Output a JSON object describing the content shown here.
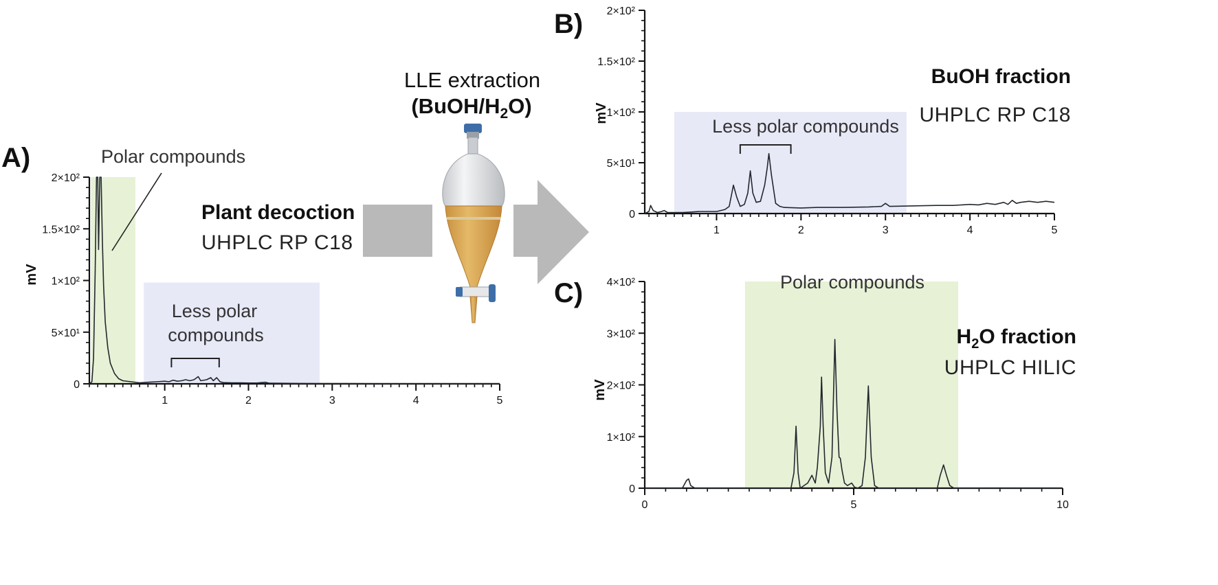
{
  "center": {
    "title_line1": "LLE extraction",
    "title_line2": "(BuOH/H₂O)",
    "icon": "separatory-funnel-icon"
  },
  "colors": {
    "polar_shade": "#e6f1d6",
    "less_polar_shade": "#e7e9f7",
    "trace": "#22282e",
    "arrow": "#b9b9b9",
    "funnel_liquid": "#d9a85a",
    "stopper": "#3e6ea8"
  },
  "chart_data": [
    {
      "panel": "A)",
      "type": "line",
      "title": "Plant decoction",
      "subtitle": "UHPLC RP C18",
      "ylabel": "mV",
      "xlabel": "",
      "xlim": [
        0.1,
        5
      ],
      "ylim": [
        0,
        200
      ],
      "xticks": [
        1,
        2,
        3,
        4,
        5
      ],
      "yticks": [
        0,
        50,
        100,
        150,
        200
      ],
      "ytick_labels": [
        "0",
        "5×10¹",
        "1×10²",
        "1.5×10²",
        "2×10²"
      ],
      "regions": [
        {
          "kind": "polar",
          "x0": 0.12,
          "x1": 0.65,
          "y0": 0,
          "y1": 200
        },
        {
          "kind": "less-polar",
          "x0": 0.75,
          "x1": 2.85,
          "y0": 0,
          "y1": 98,
          "label_lines": [
            "Less polar",
            "compounds"
          ],
          "bracket": [
            1.08,
            1.65
          ]
        }
      ],
      "annotation": "Polar compounds",
      "trace": [
        [
          0.1,
          0
        ],
        [
          0.13,
          2
        ],
        [
          0.15,
          25
        ],
        [
          0.17,
          110
        ],
        [
          0.185,
          200
        ],
        [
          0.2,
          200
        ],
        [
          0.21,
          130
        ],
        [
          0.225,
          200
        ],
        [
          0.24,
          200
        ],
        [
          0.255,
          140
        ],
        [
          0.27,
          95
        ],
        [
          0.29,
          60
        ],
        [
          0.32,
          35
        ],
        [
          0.35,
          20
        ],
        [
          0.4,
          10
        ],
        [
          0.45,
          5
        ],
        [
          0.5,
          3
        ],
        [
          0.6,
          2
        ],
        [
          0.7,
          1
        ],
        [
          0.8,
          1.5
        ],
        [
          0.9,
          2
        ],
        [
          1.0,
          2.5
        ],
        [
          1.05,
          2
        ],
        [
          1.1,
          3.5
        ],
        [
          1.15,
          2.5
        ],
        [
          1.2,
          3
        ],
        [
          1.25,
          4
        ],
        [
          1.3,
          3
        ],
        [
          1.35,
          4
        ],
        [
          1.4,
          7
        ],
        [
          1.43,
          3
        ],
        [
          1.5,
          4
        ],
        [
          1.55,
          6
        ],
        [
          1.58,
          3
        ],
        [
          1.62,
          6
        ],
        [
          1.66,
          2
        ],
        [
          1.7,
          1.2
        ],
        [
          1.8,
          1
        ],
        [
          1.9,
          1
        ],
        [
          2.0,
          0.8
        ],
        [
          2.1,
          0.8
        ],
        [
          2.2,
          1.5
        ],
        [
          2.25,
          0.6
        ],
        [
          2.4,
          0.5
        ],
        [
          2.6,
          0.4
        ],
        [
          2.8,
          0.3
        ],
        [
          3.0,
          0.3
        ],
        [
          3.5,
          0.2
        ],
        [
          4.0,
          0.2
        ],
        [
          4.5,
          0.2
        ],
        [
          5.0,
          0.2
        ]
      ]
    },
    {
      "panel": "B)",
      "type": "line",
      "title": "BuOH fraction",
      "subtitle": "UHPLC RP C18",
      "ylabel": "mV",
      "xlabel": "",
      "xlim": [
        0.15,
        5
      ],
      "ylim": [
        0,
        200
      ],
      "xticks": [
        1,
        2,
        3,
        4,
        5
      ],
      "yticks": [
        0,
        50,
        100,
        150,
        200
      ],
      "ytick_labels": [
        "0",
        "5×10¹",
        "1×10²",
        "1.5×10²",
        "2×10²"
      ],
      "regions": [
        {
          "kind": "less-polar",
          "x0": 0.5,
          "x1": 3.25,
          "y0": 0,
          "y1": 100,
          "label_lines": [
            "Less polar compounds"
          ],
          "bracket": [
            1.28,
            1.88
          ]
        }
      ],
      "trace": [
        [
          0.15,
          0
        ],
        [
          0.2,
          2
        ],
        [
          0.22,
          8
        ],
        [
          0.25,
          3
        ],
        [
          0.3,
          1
        ],
        [
          0.35,
          2
        ],
        [
          0.38,
          3
        ],
        [
          0.42,
          1
        ],
        [
          0.5,
          1
        ],
        [
          0.6,
          1
        ],
        [
          0.7,
          1.5
        ],
        [
          0.8,
          2
        ],
        [
          0.9,
          2
        ],
        [
          1.0,
          2
        ],
        [
          1.05,
          3
        ],
        [
          1.1,
          4
        ],
        [
          1.15,
          7
        ],
        [
          1.2,
          28
        ],
        [
          1.24,
          16
        ],
        [
          1.28,
          7
        ],
        [
          1.33,
          9
        ],
        [
          1.37,
          20
        ],
        [
          1.4,
          42
        ],
        [
          1.43,
          20
        ],
        [
          1.47,
          11
        ],
        [
          1.52,
          12
        ],
        [
          1.57,
          28
        ],
        [
          1.6,
          45
        ],
        [
          1.62,
          59
        ],
        [
          1.65,
          38
        ],
        [
          1.7,
          10
        ],
        [
          1.75,
          7
        ],
        [
          1.8,
          6
        ],
        [
          2.0,
          5.5
        ],
        [
          2.2,
          6
        ],
        [
          2.5,
          6
        ],
        [
          2.8,
          6.5
        ],
        [
          2.95,
          7
        ],
        [
          3.0,
          10
        ],
        [
          3.05,
          7
        ],
        [
          3.3,
          7.5
        ],
        [
          3.6,
          8
        ],
        [
          3.8,
          8
        ],
        [
          4.0,
          9
        ],
        [
          4.1,
          8.5
        ],
        [
          4.2,
          10
        ],
        [
          4.3,
          9
        ],
        [
          4.4,
          11
        ],
        [
          4.45,
          9
        ],
        [
          4.5,
          13
        ],
        [
          4.55,
          10
        ],
        [
          4.6,
          11
        ],
        [
          4.7,
          12
        ],
        [
          4.8,
          11
        ],
        [
          4.9,
          12
        ],
        [
          5.0,
          11
        ]
      ]
    },
    {
      "panel": "C)",
      "type": "line",
      "title": "H₂O fraction",
      "subtitle": "UHPLC HILIC",
      "ylabel": "mV",
      "xlabel": "",
      "xlim": [
        0,
        10
      ],
      "ylim": [
        0,
        400
      ],
      "xticks": [
        0,
        5,
        10
      ],
      "yticks": [
        0,
        100,
        200,
        300,
        400
      ],
      "ytick_labels": [
        "0",
        "1×10²",
        "2×10²",
        "3×10²",
        "4×10²"
      ],
      "regions": [
        {
          "kind": "polar",
          "x0": 2.4,
          "x1": 7.5,
          "y0": 0,
          "y1": 400,
          "label_lines": [
            "Polar compounds"
          ]
        }
      ],
      "trace": [
        [
          0,
          0
        ],
        [
          0.9,
          0
        ],
        [
          1.0,
          15
        ],
        [
          1.05,
          18
        ],
        [
          1.1,
          5
        ],
        [
          1.2,
          0
        ],
        [
          2.0,
          0
        ],
        [
          3.0,
          0
        ],
        [
          3.5,
          0
        ],
        [
          3.57,
          30
        ],
        [
          3.62,
          120
        ],
        [
          3.67,
          30
        ],
        [
          3.72,
          0
        ],
        [
          3.9,
          10
        ],
        [
          4.0,
          25
        ],
        [
          4.08,
          10
        ],
        [
          4.13,
          40
        ],
        [
          4.17,
          85
        ],
        [
          4.2,
          120
        ],
        [
          4.23,
          215
        ],
        [
          4.27,
          120
        ],
        [
          4.32,
          30
        ],
        [
          4.4,
          10
        ],
        [
          4.48,
          60
        ],
        [
          4.55,
          288
        ],
        [
          4.6,
          150
        ],
        [
          4.65,
          60
        ],
        [
          4.68,
          58
        ],
        [
          4.72,
          35
        ],
        [
          4.78,
          10
        ],
        [
          4.85,
          5
        ],
        [
          4.95,
          10
        ],
        [
          5.02,
          2
        ],
        [
          5.1,
          0
        ],
        [
          5.2,
          5
        ],
        [
          5.28,
          60
        ],
        [
          5.35,
          198
        ],
        [
          5.42,
          60
        ],
        [
          5.5,
          5
        ],
        [
          5.6,
          0
        ],
        [
          6.0,
          0
        ],
        [
          6.5,
          0
        ],
        [
          7.0,
          0
        ],
        [
          7.07,
          25
        ],
        [
          7.15,
          45
        ],
        [
          7.22,
          25
        ],
        [
          7.3,
          5
        ],
        [
          7.4,
          0
        ],
        [
          8.0,
          0
        ],
        [
          10.0,
          0
        ]
      ]
    }
  ]
}
